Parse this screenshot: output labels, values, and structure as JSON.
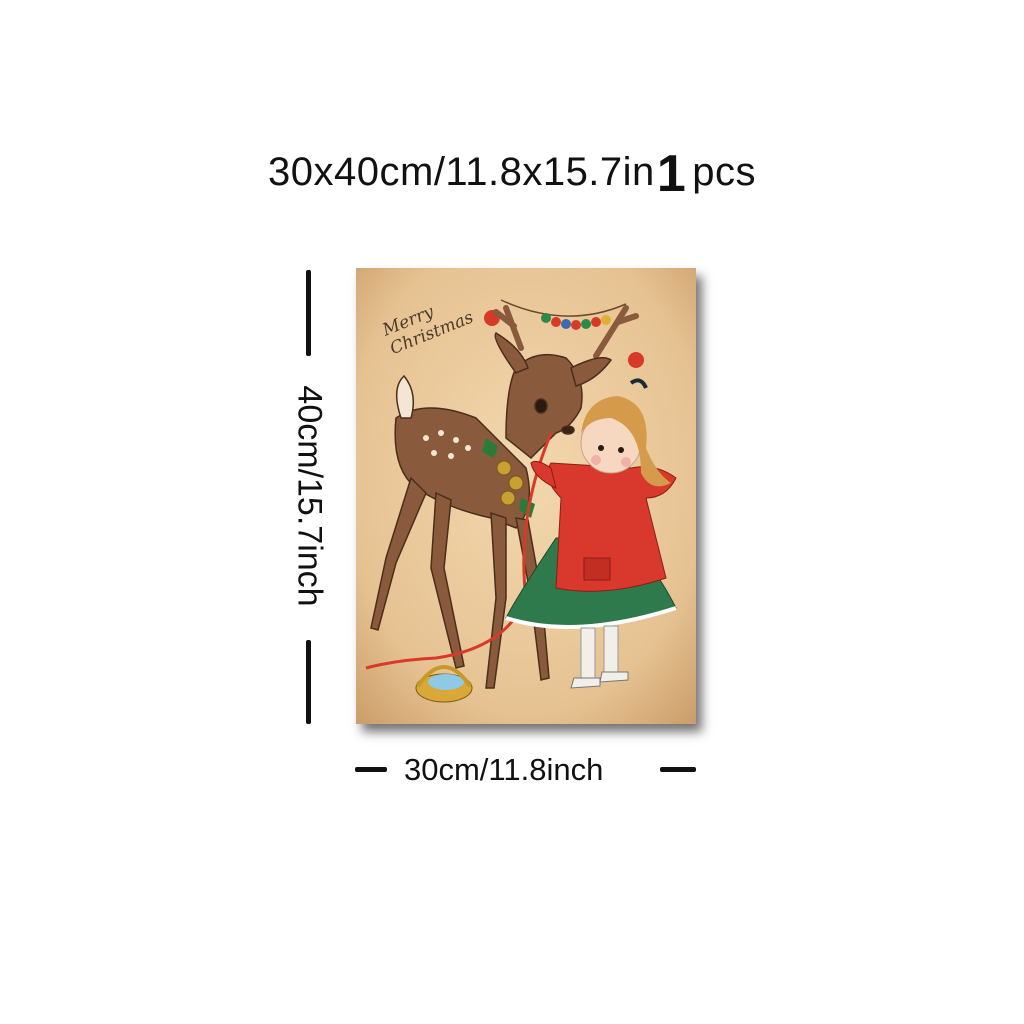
{
  "header": {
    "dimensions": "30x40cm/11.8x15.7in",
    "quantity_number": "1",
    "quantity_unit": "pcs"
  },
  "height_label": "40cm/15.7inch",
  "width_label": "30cm/11.8inch",
  "artwork": {
    "greeting_line1": "Merry",
    "greeting_line2": "Christmas",
    "colors": {
      "background": "#e9c99b",
      "coat": "#d8392c",
      "dress": "#2f7a4c",
      "deer": "#8a5a3c"
    }
  }
}
